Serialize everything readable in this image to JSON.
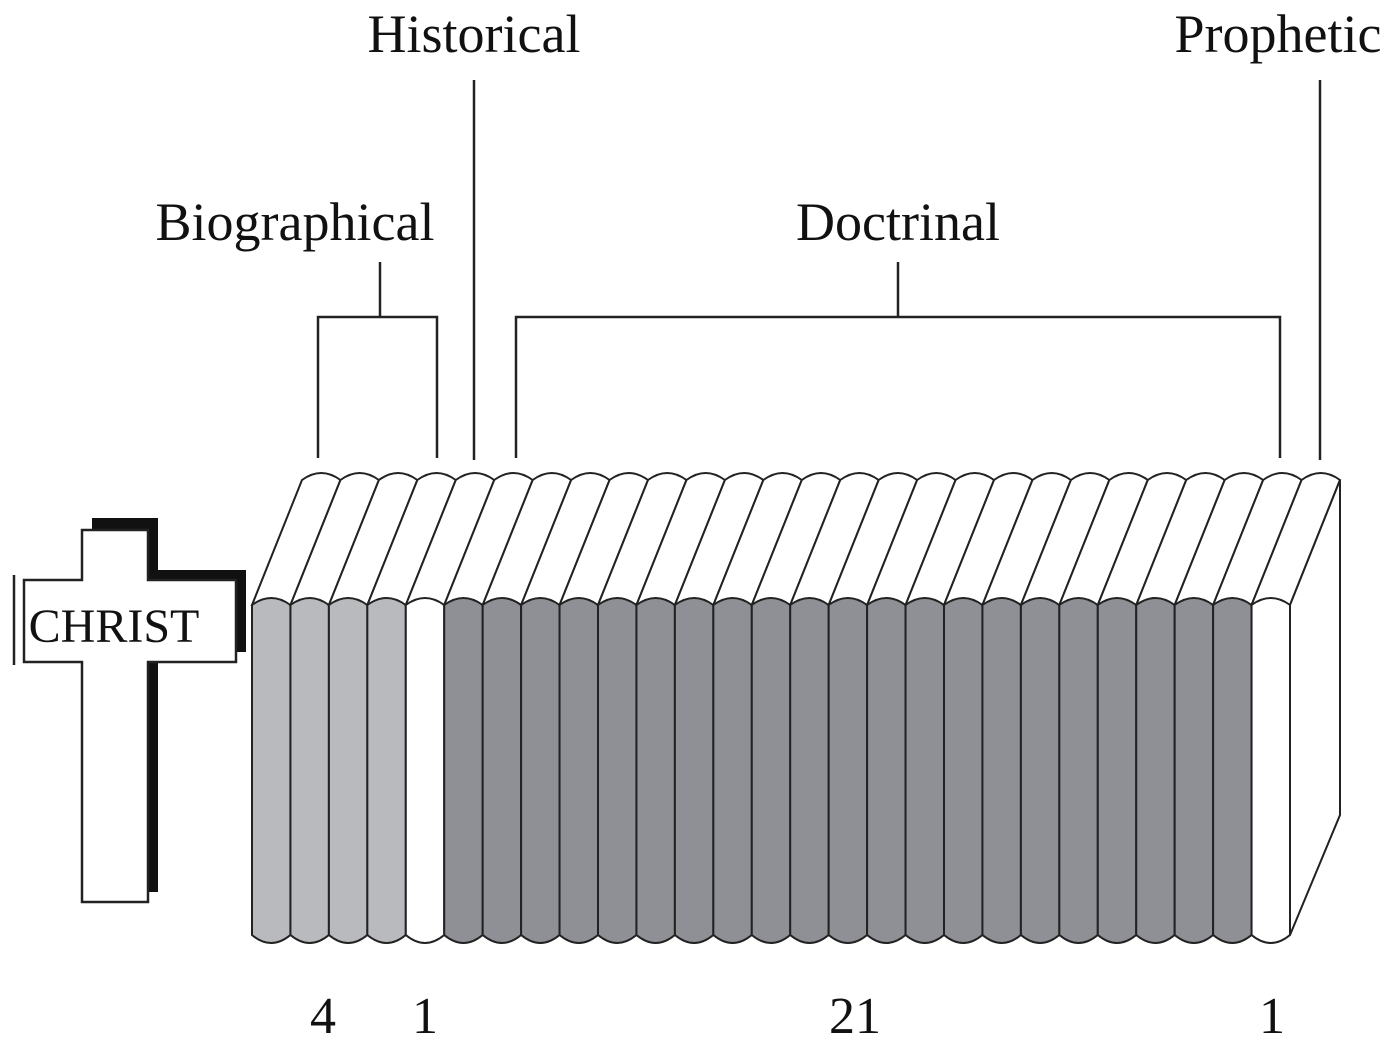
{
  "cross_label": "CHRIST",
  "groups": [
    {
      "label": "Biographical",
      "count": "4",
      "color": "#b9babe"
    },
    {
      "label": "Historical",
      "count": "1",
      "color": "#ffffff"
    },
    {
      "label": "Doctrinal",
      "count": "21",
      "color": "#8f9095"
    },
    {
      "label": "Prophetic",
      "count": "1",
      "color": "#ffffff"
    }
  ]
}
